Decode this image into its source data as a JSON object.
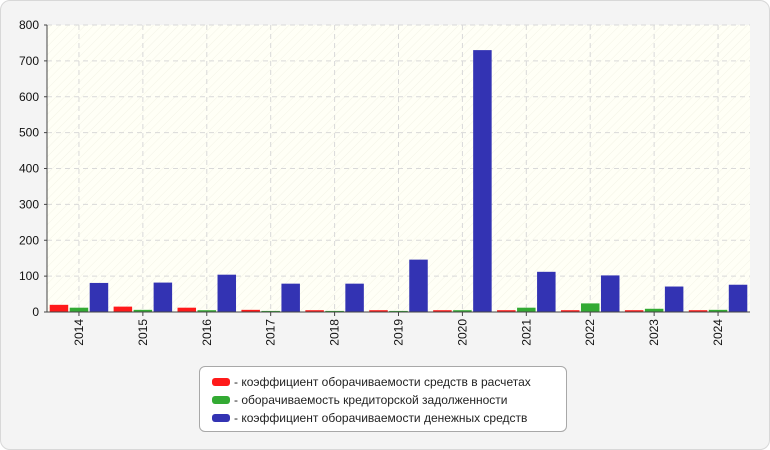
{
  "chart_data": {
    "type": "bar",
    "categories": [
      "2014",
      "2015",
      "2016",
      "2017",
      "2018",
      "2019",
      "2020",
      "2021",
      "2022",
      "2023",
      "2024"
    ],
    "series": [
      {
        "name": "- коэффициент оборачиваемости средств в расчетах",
        "color": "#ff1a1a",
        "values": [
          20,
          15,
          12,
          6,
          5,
          5,
          5,
          5,
          5,
          5,
          5
        ]
      },
      {
        "name": "- оборачиваемость кредиторской задолженности",
        "color": "#33aa33",
        "values": [
          12,
          6,
          5,
          3,
          3,
          3,
          5,
          12,
          24,
          9,
          6
        ]
      },
      {
        "name": "- коэффициент оборачиваемости денежных средств",
        "color": "#3333b3",
        "values": [
          81,
          82,
          104,
          79,
          79,
          146,
          730,
          112,
          102,
          71,
          76
        ]
      }
    ],
    "yticks": [
      "0",
      "100",
      "200",
      "300",
      "400",
      "500",
      "600",
      "700",
      "800"
    ],
    "ylim": [
      0,
      800
    ],
    "grid": true,
    "legend_position": "bottom-center"
  }
}
